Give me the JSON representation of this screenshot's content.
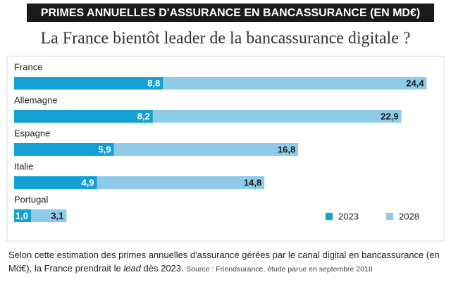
{
  "chart_data": {
    "type": "bar",
    "orientation": "horizontal",
    "overlay": true,
    "title": "PRIMES ANNUELLES D'ASSURANCE EN BANCASSURANCE (EN MD€)",
    "subtitle": "La France bientôt leader de la bancassurance digitale ?",
    "categories": [
      "France",
      "Allemagne",
      "Espagne",
      "Italie",
      "Portugal"
    ],
    "series": [
      {
        "name": "2023",
        "color": "#14a0d4",
        "values": [
          8.8,
          8.2,
          5.9,
          4.9,
          1.0
        ],
        "value_labels": [
          "8,8",
          "8,2",
          "5,9",
          "4,9",
          "1,0"
        ]
      },
      {
        "name": "2028",
        "color": "#8ecbe8",
        "values": [
          24.4,
          22.9,
          16.8,
          14.8,
          3.1
        ],
        "value_labels": [
          "24,4",
          "22,9",
          "16,8",
          "14,8",
          "3,1"
        ]
      }
    ],
    "legend": "bottom-right",
    "caption": "Selon cette estimation des primes annuelles d'assurance gérées par le canal digital en bancassurance (en Md€), la France prendrait le",
    "caption_emphasis": "lead",
    "caption_end": "dès 2023.",
    "source": "Source : Friendsurance, étude parue en septembre 2018"
  }
}
